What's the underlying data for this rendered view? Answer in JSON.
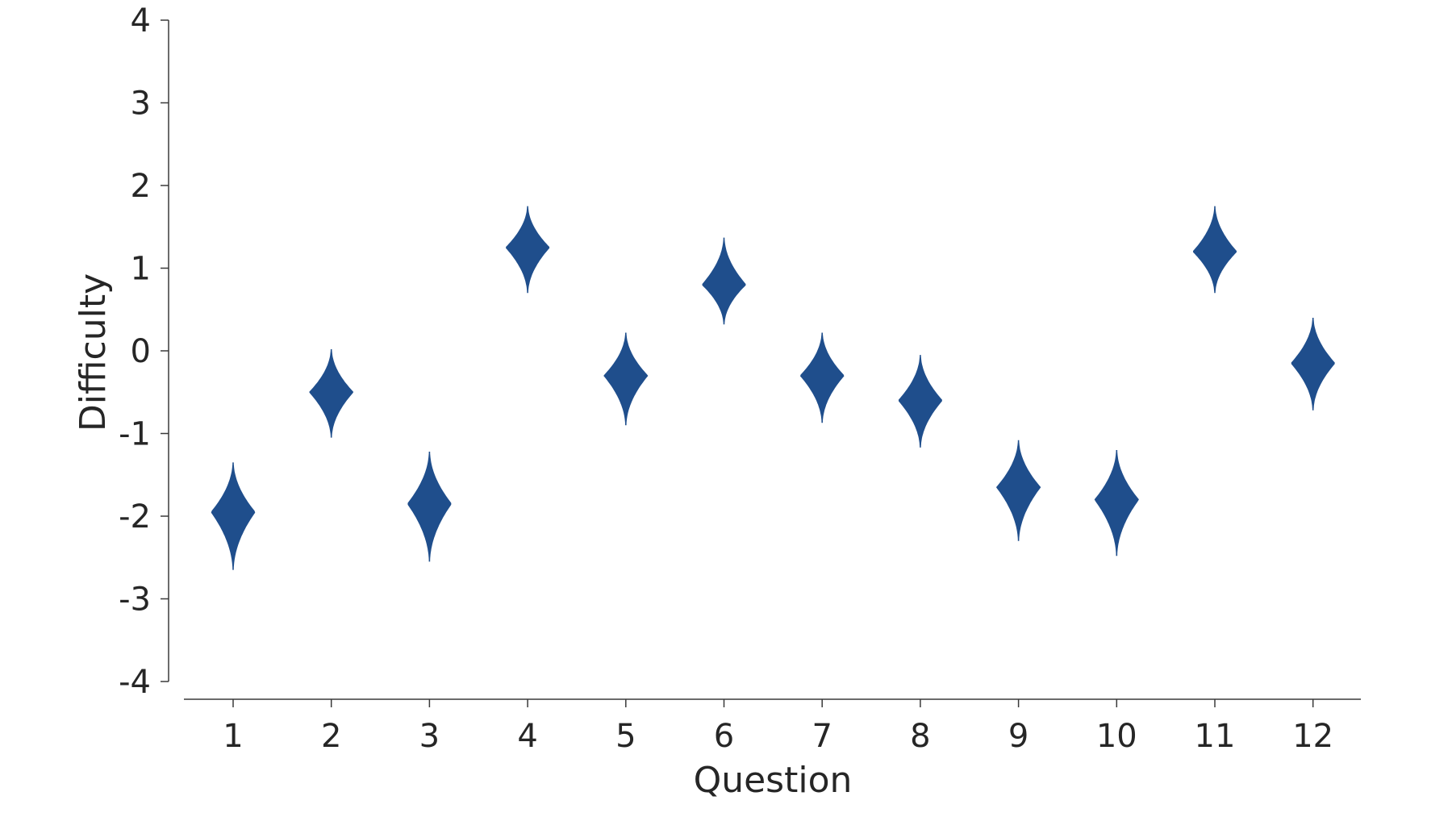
{
  "chart_data": {
    "type": "violin",
    "title": "",
    "xlabel": "Question",
    "ylabel": "Difficulty",
    "ylim": [
      -4,
      4
    ],
    "yticks": [
      -4,
      -3,
      -2,
      -1,
      0,
      1,
      2,
      3,
      4
    ],
    "ytick_labels": [
      "-4",
      "-3",
      "-2",
      "-1",
      "0",
      "1",
      "2",
      "3",
      "4"
    ],
    "categories": [
      "1",
      "2",
      "3",
      "4",
      "5",
      "6",
      "7",
      "8",
      "9",
      "10",
      "11",
      "12"
    ],
    "values": [
      -1.95,
      -0.5,
      -1.85,
      1.25,
      -0.3,
      0.8,
      -0.3,
      -0.6,
      -1.65,
      -1.8,
      1.2,
      -0.15
    ],
    "ranges": [
      [
        -2.65,
        -1.35
      ],
      [
        -1.05,
        0.02
      ],
      [
        -2.55,
        -1.22
      ],
      [
        0.7,
        1.75
      ],
      [
        -0.9,
        0.22
      ],
      [
        0.32,
        1.37
      ],
      [
        -0.87,
        0.22
      ],
      [
        -1.17,
        -0.05
      ],
      [
        -2.3,
        -1.08
      ],
      [
        -2.48,
        -1.2
      ],
      [
        0.7,
        1.75
      ],
      [
        -0.72,
        0.4
      ]
    ],
    "grid": false,
    "color": "#1f4e8c"
  }
}
